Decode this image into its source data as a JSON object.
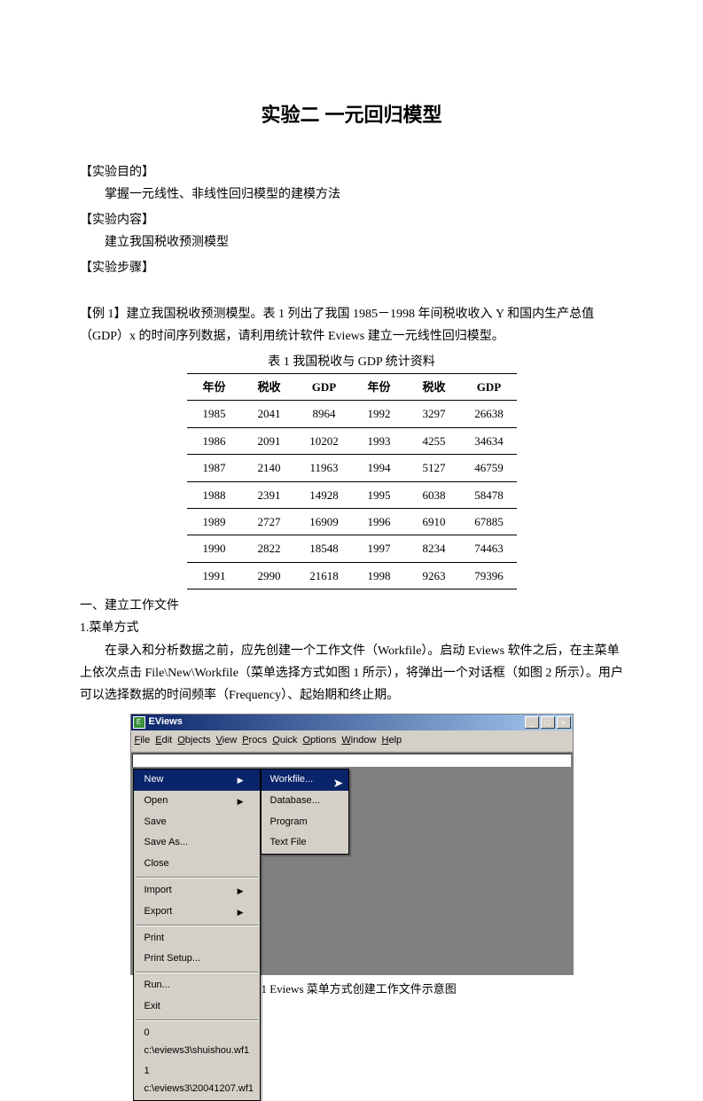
{
  "title": "实验二   一元回归模型",
  "labels": {
    "objective": "【实验目的】",
    "objective_text": "掌握一元线性、非线性回归模型的建模方法",
    "content": "【实验内容】",
    "content_text": "建立我国税收预测模型",
    "steps": "【实验步骤】"
  },
  "example_intro_1": "【例 1】建立我国税收预测模型。表 1 列出了我国 1985－1998 年间税收收入 Y 和国内生产总值（GDP）x 的时间序列数据，请利用统计软件 Eviews 建立一元线性回归模型。",
  "table_title": "表 1    我国税收与 GDP 统计资料",
  "table": {
    "columns": [
      "年份",
      "税收",
      "GDP",
      "年份",
      "税收",
      "GDP"
    ],
    "rows": [
      [
        "1985",
        "2041",
        "8964",
        "1992",
        "3297",
        "26638"
      ],
      [
        "1986",
        "2091",
        "10202",
        "1993",
        "4255",
        "34634"
      ],
      [
        "1987",
        "2140",
        "11963",
        "1994",
        "5127",
        "46759"
      ],
      [
        "1988",
        "2391",
        "14928",
        "1995",
        "6038",
        "58478"
      ],
      [
        "1989",
        "2727",
        "16909",
        "1996",
        "6910",
        "67885"
      ],
      [
        "1990",
        "2822",
        "18548",
        "1997",
        "8234",
        "74463"
      ],
      [
        "1991",
        "2990",
        "21618",
        "1998",
        "9263",
        "79396"
      ]
    ]
  },
  "section1_heading": "一、建立工作文件",
  "section1_sub": "1.菜单方式",
  "section1_para": "在录入和分析数据之前，应先创建一个工作文件（Workfile）。启动 Eviews 软件之后，在主菜单上依次点击 File\\New\\Workfile（菜单选择方式如图 1 所示），将弹出一个对话框（如图 2 所示）。用户可以选择数据的时间频率（Frequency）、起始期和终止期。",
  "figure_caption": "图 1 Eviews 菜单方式创建工作文件示意图",
  "eviews": {
    "window_title": "EViews",
    "menubar": [
      "File",
      "Edit",
      "Objects",
      "View",
      "Procs",
      "Quick",
      "Options",
      "Window",
      "Help"
    ],
    "file_menu": [
      {
        "label": "New",
        "sel": true,
        "arrow": true
      },
      {
        "label": "Open",
        "arrow": true
      },
      {
        "label": "Save"
      },
      {
        "label": "Save As..."
      },
      {
        "label": "Close"
      },
      {
        "sep": true
      },
      {
        "label": "Import",
        "arrow": true
      },
      {
        "label": "Export",
        "arrow": true
      },
      {
        "sep": true
      },
      {
        "label": "Print"
      },
      {
        "label": "Print Setup..."
      },
      {
        "sep": true
      },
      {
        "label": "Run..."
      },
      {
        "label": "Exit"
      },
      {
        "sep": true
      },
      {
        "label": "0 c:\\eviews3\\shuishou.wf1"
      },
      {
        "label": "1 c:\\eviews3\\20041207.wf1"
      }
    ],
    "sub_menu": [
      {
        "label": "Workfile...",
        "sel": true
      },
      {
        "label": "Database..."
      },
      {
        "label": "Program"
      },
      {
        "label": "Text File"
      }
    ]
  }
}
